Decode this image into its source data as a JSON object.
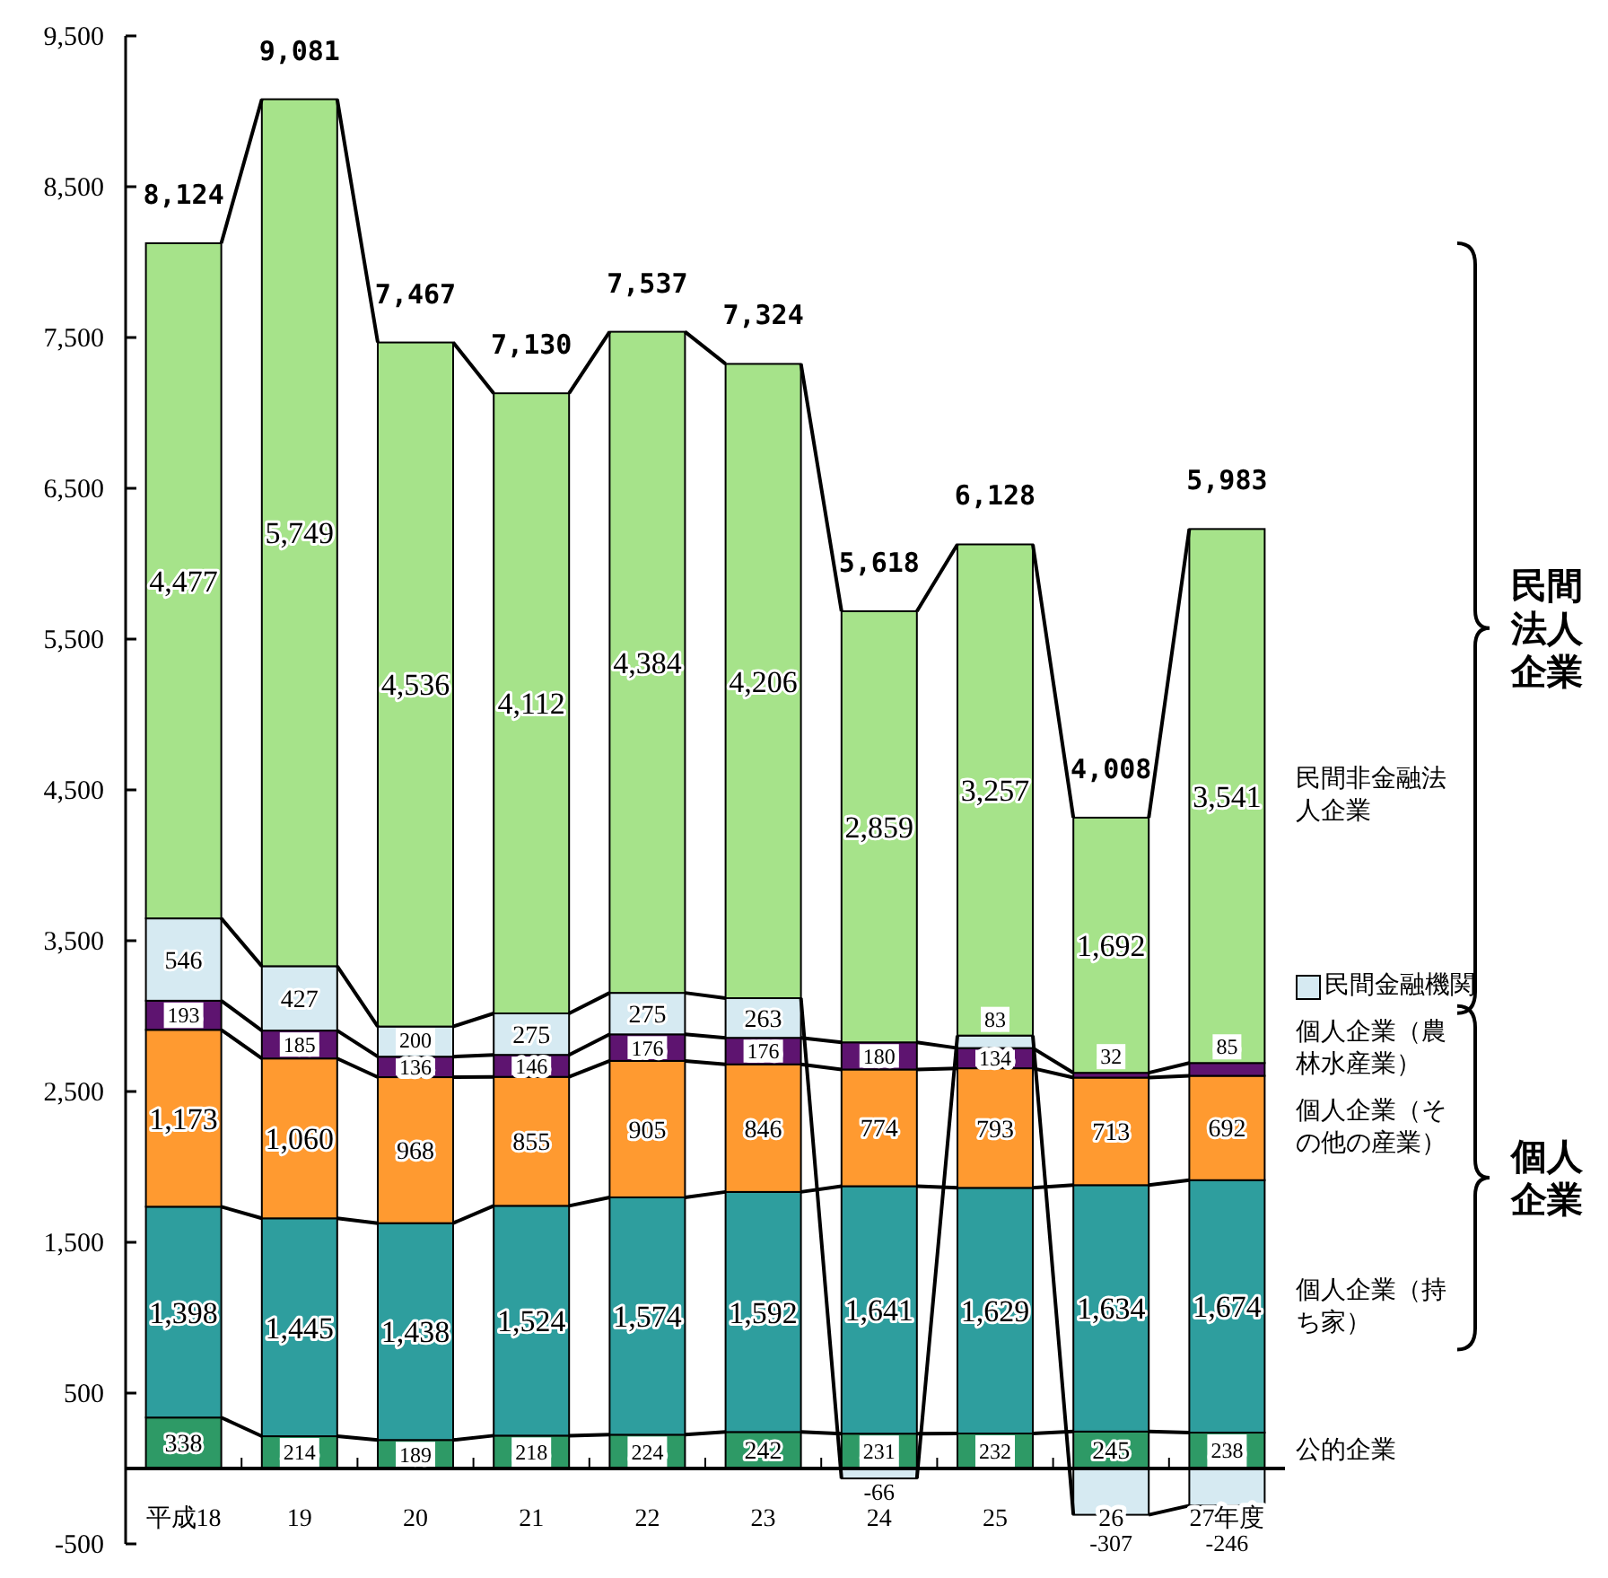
{
  "chart_data": {
    "type": "bar",
    "stacked": true,
    "categories": [
      "平成18",
      "19",
      "20",
      "21",
      "22",
      "23",
      "24",
      "25",
      "26",
      "27年度"
    ],
    "series": [
      {
        "name": "公的企業",
        "color": "#2e9a66",
        "values": [
          338,
          214,
          189,
          218,
          224,
          242,
          231,
          232,
          245,
          238
        ],
        "value_labels": [
          "338",
          "214",
          "189",
          "218",
          "224",
          "242",
          "231",
          "232",
          "245",
          "238"
        ]
      },
      {
        "name": "個人企業（持ち家）",
        "color": "#2e9e9e",
        "values": [
          1398,
          1445,
          1438,
          1524,
          1574,
          1592,
          1641,
          1629,
          1634,
          1674
        ],
        "value_labels": [
          "1,398",
          "1,445",
          "1,438",
          "1,524",
          "1,574",
          "1,592",
          "1,641",
          "1,629",
          "1,634",
          "1,674"
        ]
      },
      {
        "name": "個人企業（その他の産業）",
        "color": "#ff9a30",
        "values": [
          1173,
          1060,
          968,
          855,
          905,
          846,
          774,
          793,
          713,
          692
        ],
        "value_labels": [
          "1,173",
          "1,060",
          "968",
          "855",
          "905",
          "846",
          "774",
          "793",
          "713",
          "692"
        ]
      },
      {
        "name": "個人企業（農林水産業）",
        "color": "#5e1470",
        "values": [
          193,
          185,
          136,
          146,
          176,
          176,
          180,
          134,
          32,
          85
        ],
        "value_labels": [
          "193",
          "185",
          "136",
          "146",
          "176",
          "176",
          "180",
          "134",
          "32",
          "85"
        ]
      },
      {
        "name": "民間金融機関",
        "color": "#d6eaf2",
        "values": [
          546,
          427,
          200,
          275,
          275,
          263,
          -66,
          83,
          -307,
          -246
        ],
        "value_labels": [
          "546",
          "427",
          "200",
          "275",
          "275",
          "263",
          "-66",
          "83",
          "-307",
          "-246"
        ]
      },
      {
        "name": "民間非金融法人企業",
        "color": "#a6e38a",
        "values": [
          4477,
          5749,
          4536,
          4112,
          4384,
          4206,
          2859,
          3257,
          1692,
          3541
        ],
        "value_labels": [
          "4,477",
          "5,749",
          "4,536",
          "4,112",
          "4,384",
          "4,206",
          "2,859",
          "3,257",
          "1,692",
          "3,541"
        ]
      }
    ],
    "totals": [
      "8,124",
      "9,081",
      "7,467",
      "7,130",
      "7,537",
      "7,324",
      "5,618",
      "6,128",
      "4,008",
      "5,983"
    ],
    "ylim": [
      -500,
      9500
    ],
    "yticks": [
      {
        "value": -500,
        "label": "-500"
      },
      {
        "value": 500,
        "label": "500"
      },
      {
        "value": 1500,
        "label": "1,500"
      },
      {
        "value": 2500,
        "label": "2,500"
      },
      {
        "value": 3500,
        "label": "3,500"
      },
      {
        "value": 4500,
        "label": "4,500"
      },
      {
        "value": 5500,
        "label": "5,500"
      },
      {
        "value": 6500,
        "label": "6,500"
      },
      {
        "value": 7500,
        "label": "7,500"
      },
      {
        "value": 8500,
        "label": "8,500"
      },
      {
        "value": 9500,
        "label": "9,500"
      }
    ],
    "annotations": [
      "民間法人企業",
      "個人企業"
    ]
  }
}
